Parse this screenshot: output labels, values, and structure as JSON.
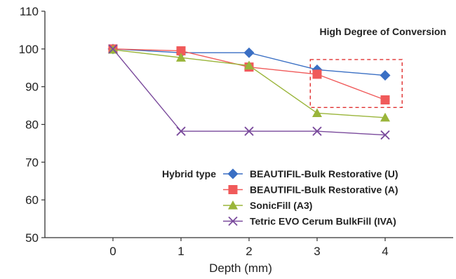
{
  "chart_data": {
    "type": "line",
    "title": "",
    "xlabel": "Depth (mm)",
    "ylabel": "",
    "x": [
      0,
      1,
      2,
      3,
      4
    ],
    "xlim": [
      -1,
      5
    ],
    "ylim": [
      50,
      110
    ],
    "yticks": [
      50,
      60,
      70,
      80,
      90,
      100,
      110
    ],
    "grid": false,
    "legend_title": "Hybrid type",
    "legend_position": "bottom-right",
    "annotation": "High Degree of Conversion",
    "highlight_region": {
      "x": [
        2.9,
        4.25
      ],
      "y": [
        84.5,
        97.2
      ],
      "color": "#e03030"
    },
    "series": [
      {
        "name": "BEAUTIFIL-Bulk Restorative (U)",
        "values": [
          100,
          99,
          99,
          94.5,
          93
        ],
        "color": "#3a6fc4",
        "marker": "diamond"
      },
      {
        "name": "BEAUTIFIL-Bulk Restorative (A)",
        "values": [
          100,
          99.5,
          95.2,
          93.3,
          86.5
        ],
        "color": "#f05a5a",
        "marker": "square"
      },
      {
        "name": "SonicFill (A3)",
        "values": [
          99.8,
          97.7,
          95.6,
          83,
          81.8
        ],
        "color": "#9ab53a",
        "marker": "triangle"
      },
      {
        "name": "Tetric EVO Cerum BulkFill (IVA)",
        "values": [
          100,
          78.2,
          78.2,
          78.2,
          77.2
        ],
        "color": "#7a4a9c",
        "marker": "x"
      }
    ]
  }
}
